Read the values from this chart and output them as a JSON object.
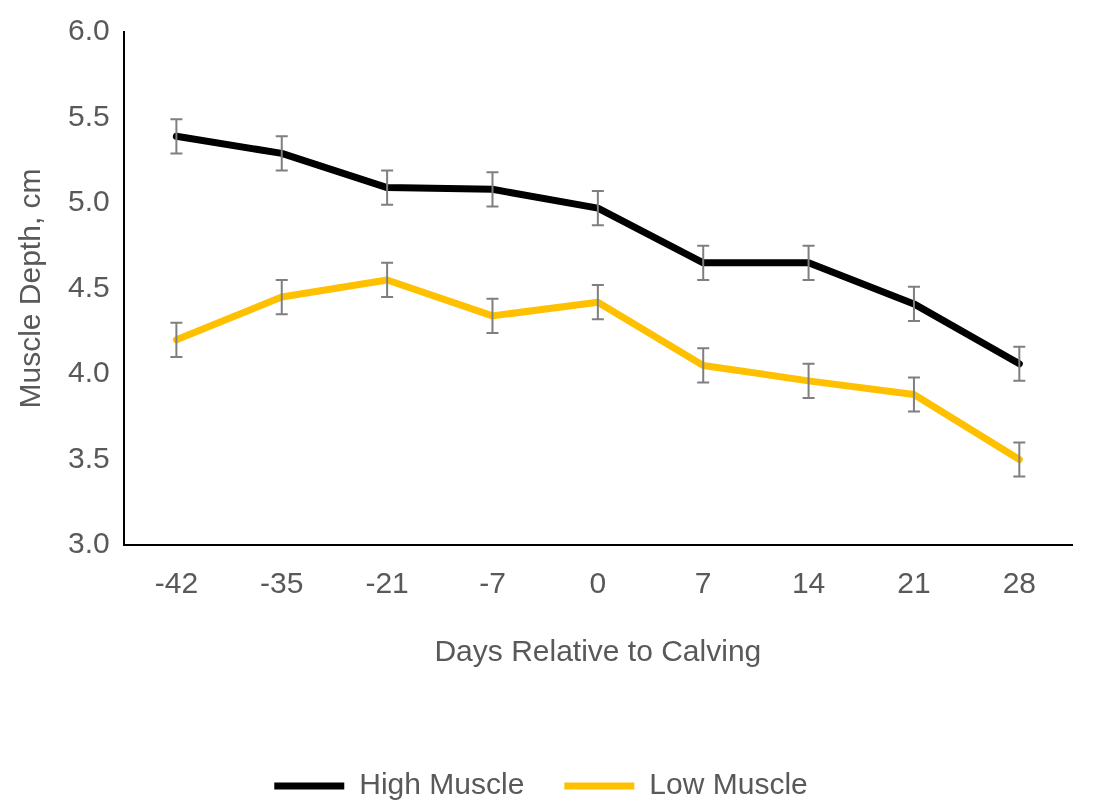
{
  "chart_data": {
    "type": "line",
    "xlabel": "Days Relative to Calving",
    "ylabel": "Muscle Depth, cm",
    "categories": [
      "-42",
      "-35",
      "-21",
      "-7",
      "0",
      "7",
      "14",
      "21",
      "28"
    ],
    "series": [
      {
        "name": "High Muscle",
        "color": "#000000",
        "values": [
          5.39,
          5.29,
          5.09,
          5.08,
          4.97,
          4.65,
          4.65,
          4.41,
          4.06
        ],
        "errors": [
          0.1,
          0.1,
          0.1,
          0.1,
          0.1,
          0.1,
          0.1,
          0.1,
          0.1
        ]
      },
      {
        "name": "Low Muscle",
        "color": "#ffc000",
        "values": [
          4.2,
          4.45,
          4.55,
          4.34,
          4.42,
          4.05,
          3.96,
          3.88,
          3.5
        ],
        "errors": [
          0.1,
          0.1,
          0.1,
          0.1,
          0.1,
          0.1,
          0.1,
          0.1,
          0.1
        ]
      }
    ],
    "ylim": [
      3.0,
      6.0
    ],
    "yticks": [
      {
        "value": 3,
        "label": "3.0"
      },
      3.5,
      {
        "value": 4,
        "label": "4.0"
      },
      4.5,
      {
        "value": 5,
        "label": "5.0"
      },
      5.5,
      {
        "value": 6,
        "label": "6.0"
      }
    ],
    "grid": false,
    "legend": "bottom",
    "marker": "none",
    "line_style": "solid"
  }
}
